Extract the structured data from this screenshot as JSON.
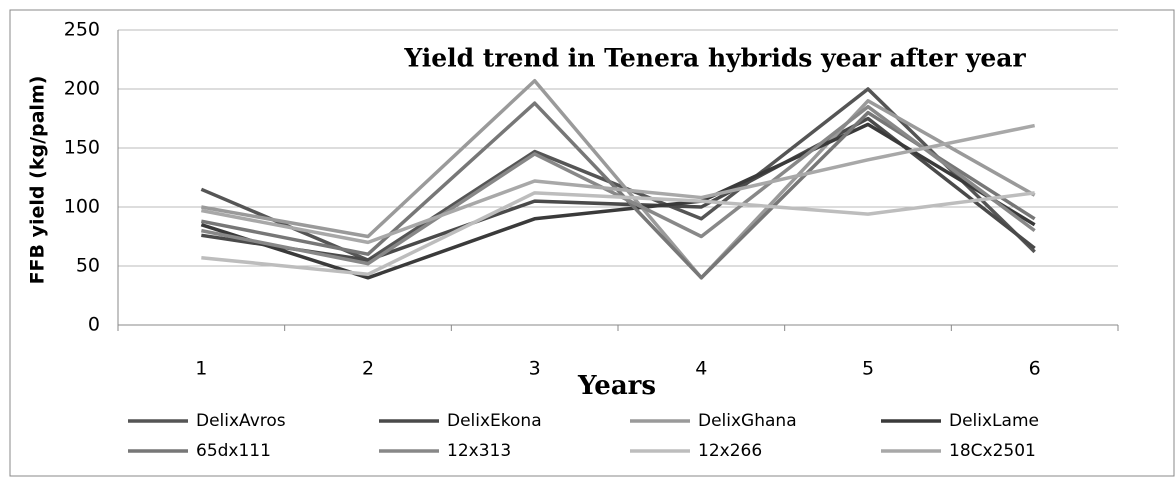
{
  "chart_data": {
    "type": "line",
    "title": "Yield trend in Tenera hybrids year after year",
    "x_label": "Years",
    "y_label": "FFB yield (kg/palm)",
    "categories": [
      "1",
      "2",
      "3",
      "4",
      "5",
      "6"
    ],
    "ylim": [
      0,
      250
    ],
    "yticks": [
      0,
      50,
      100,
      150,
      200,
      250
    ],
    "grid": true,
    "legend": "bottom",
    "series": [
      {
        "name": "DelixAvros",
        "color": "#555555",
        "values": [
          115,
          55,
          147,
          90,
          200,
          62
        ]
      },
      {
        "name": "DelixEkona",
        "color": "#4a4a4a",
        "values": [
          76,
          55,
          105,
          100,
          175,
          65
        ]
      },
      {
        "name": "DelixGhana",
        "color": "#9a9a9a",
        "values": [
          100,
          75,
          207,
          40,
          190,
          110
        ]
      },
      {
        "name": "DelixLame",
        "color": "#3a3a3a",
        "values": [
          85,
          40,
          90,
          105,
          170,
          85
        ]
      },
      {
        "name": "65dx111",
        "color": "#777777",
        "values": [
          88,
          60,
          188,
          40,
          180,
          90
        ]
      },
      {
        "name": "12x313",
        "color": "#888888",
        "values": [
          80,
          52,
          145,
          75,
          185,
          80
        ]
      },
      {
        "name": "12x266",
        "color": "#bdbdbd",
        "values": [
          57,
          43,
          112,
          105,
          94,
          112
        ]
      },
      {
        "name": "18Cx2501",
        "color": "#a8a8a8",
        "values": [
          97,
          70,
          122,
          108,
          140,
          169
        ]
      }
    ]
  }
}
